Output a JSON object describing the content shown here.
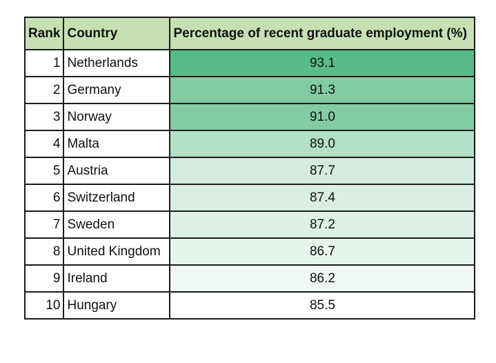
{
  "chart_data": {
    "type": "table",
    "columns": [
      "Rank",
      "Country",
      "Percentage of recent graduate employment (%)"
    ],
    "header_color": "#c6e0b4",
    "color_scale": {
      "min_color": "#ffffff",
      "max_color": "#57bb8a"
    },
    "rows": [
      {
        "rank": "1",
        "country": "Netherlands",
        "value": "93.1",
        "color": "#57bb8a"
      },
      {
        "rank": "2",
        "country": "Germany",
        "value": "91.3",
        "color": "#82cba4"
      },
      {
        "rank": "3",
        "country": "Norway",
        "value": "91.0",
        "color": "#82cba4"
      },
      {
        "rank": "4",
        "country": "Malta",
        "value": "89.0",
        "color": "#b3e0c7"
      },
      {
        "rank": "5",
        "country": "Austria",
        "value": "87.7",
        "color": "#d3ecdf"
      },
      {
        "rank": "6",
        "country": "Switzerland",
        "value": "87.4",
        "color": "#d9efe3"
      },
      {
        "rank": "7",
        "country": "Sweden",
        "value": "87.2",
        "color": "#dff1e7"
      },
      {
        "rank": "8",
        "country": "United Kingdom",
        "value": "86.7",
        "color": "#e6f4ec"
      },
      {
        "rank": "9",
        "country": "Ireland",
        "value": "86.2",
        "color": "#eff8f3"
      },
      {
        "rank": "10",
        "country": "Hungary",
        "value": "85.5",
        "color": "#ffffff"
      }
    ]
  }
}
